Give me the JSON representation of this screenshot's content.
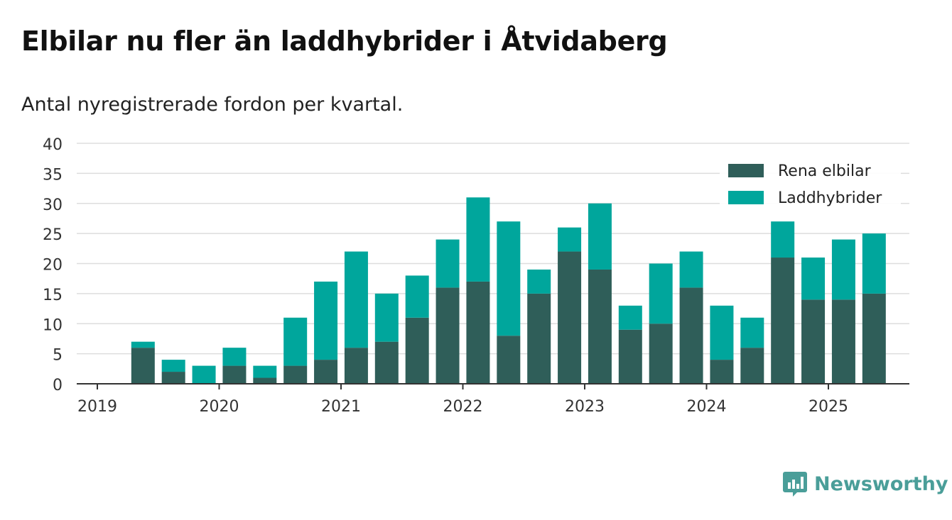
{
  "title": "Elbilar nu fler än laddhybrider i Åtvidaberg",
  "subtitle": "Antal nyregistrerade fordon per kvartal.",
  "brand": {
    "name": "Newsworthy",
    "icon": "newsworthy-logo-icon",
    "color": "#4a9e99"
  },
  "colors": {
    "Rena elbilar": "#2f5e59",
    "Laddhybrider": "#00a69c",
    "grid": "#dddddd",
    "axis": "#333333"
  },
  "chart_data": {
    "type": "bar",
    "stacked": true,
    "x_tick_labels": [
      "2019",
      "2020",
      "2021",
      "2022",
      "2023",
      "2024",
      "2025"
    ],
    "categories": [
      "2019 Q2",
      "2019 Q3",
      "2019 Q4",
      "2020 Q1",
      "2020 Q2",
      "2020 Q3",
      "2020 Q4",
      "2021 Q1",
      "2021 Q2",
      "2021 Q3",
      "2021 Q4",
      "2022 Q1",
      "2022 Q2",
      "2022 Q3",
      "2022 Q4",
      "2023 Q1",
      "2023 Q2",
      "2023 Q3",
      "2023 Q4",
      "2024 Q1",
      "2024 Q2",
      "2024 Q3",
      "2024 Q4",
      "2025 Q1",
      "2025 Q2"
    ],
    "series": [
      {
        "name": "Rena elbilar",
        "values": [
          6,
          2,
          0,
          3,
          1,
          3,
          4,
          6,
          7,
          11,
          16,
          17,
          8,
          15,
          22,
          19,
          9,
          10,
          16,
          4,
          6,
          21,
          14,
          14,
          15
        ]
      },
      {
        "name": "Laddhybrider",
        "values": [
          1,
          2,
          3,
          3,
          2,
          8,
          13,
          16,
          8,
          7,
          8,
          14,
          19,
          4,
          4,
          11,
          4,
          10,
          6,
          9,
          5,
          6,
          7,
          10,
          10
        ]
      }
    ],
    "ylim": [
      0,
      40
    ],
    "yticks": [
      0,
      5,
      10,
      15,
      20,
      25,
      30,
      35,
      40
    ],
    "grid": true,
    "legend": "top-right"
  }
}
